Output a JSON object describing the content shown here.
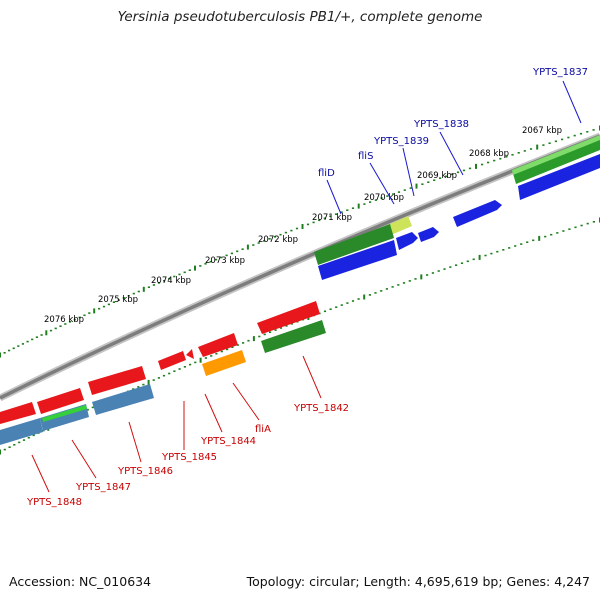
{
  "title": "Yersinia pseudotuberculosis PB1/+, complete genome",
  "accession": "Accession: NC_010634",
  "topology": "Topology: circular; Length: 4,695,619 bp; Genes: 4,247",
  "colors": {
    "red": "#e8171b",
    "green": "#2a8a2a",
    "blue": "#1a24e0",
    "steel_blue": "#4a82b4",
    "orange": "#ff9900",
    "light_green": "#36d03a",
    "backbone": "#808080",
    "tick": "#1f7f1f",
    "label_top": "#0a0aa0",
    "label_bottom": "#c80000"
  },
  "kbp_ticks": [
    "2076 kbp",
    "2075 kbp",
    "2074 kbp",
    "2073 kbp",
    "2072 kbp",
    "2071 kbp",
    "2070 kbp",
    "2069 kbp",
    "2068 kbp",
    "2067 kbp"
  ],
  "labels_top": [
    "YPTS_1837",
    "YPTS_1838",
    "YPTS_1839",
    "fliS",
    "fliD"
  ],
  "labels_bottom": [
    "YPTS_1842",
    "fliA",
    "YPTS_1844",
    "YPTS_1845",
    "YPTS_1846",
    "YPTS_1847",
    "YPTS_1848"
  ]
}
